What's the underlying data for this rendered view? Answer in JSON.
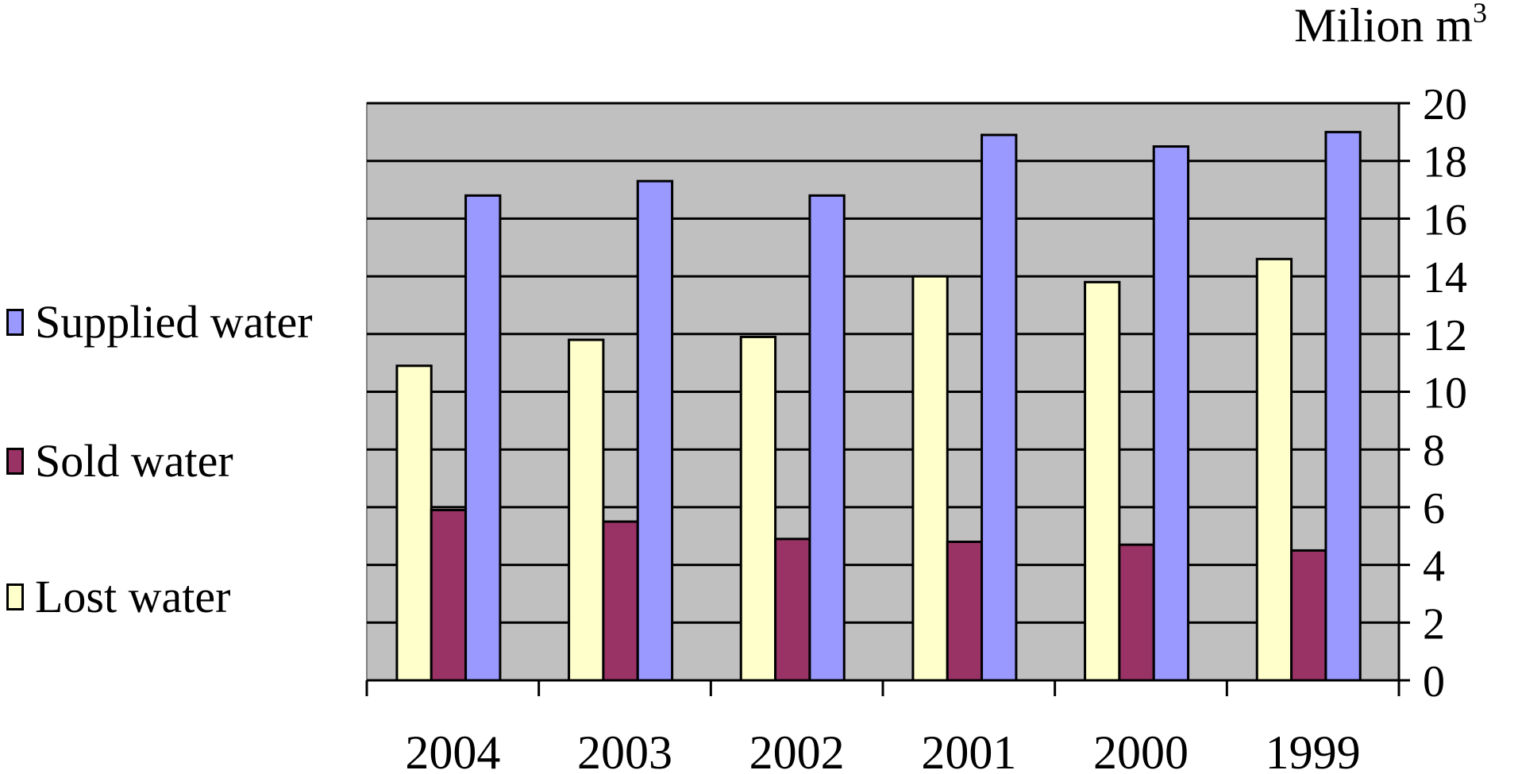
{
  "chart_data": {
    "type": "bar",
    "unit_label": "Milion m",
    "unit_superscript": "3",
    "categories": [
      "2004",
      "2003",
      "2002",
      "2001",
      "2000",
      "1999"
    ],
    "ylim": [
      0,
      20
    ],
    "y_ticks": [
      "0",
      "2",
      "4",
      "6",
      "8",
      "10",
      "12",
      "14",
      "16",
      "18",
      "20"
    ],
    "y_axis_side": "right",
    "grid": true,
    "legend_position": "left",
    "series": [
      {
        "name": "Lost water",
        "color": "#FFFFCC",
        "values": [
          10.9,
          11.8,
          11.9,
          14.0,
          13.8,
          14.6
        ]
      },
      {
        "name": "Sold water",
        "color": "#993366",
        "values": [
          5.9,
          5.5,
          4.9,
          4.8,
          4.7,
          4.5
        ]
      },
      {
        "name": "Supplied water",
        "color": "#9999FF",
        "values": [
          16.8,
          17.3,
          16.8,
          18.9,
          18.5,
          19.0
        ]
      }
    ],
    "plot_background": "#C0C0C0"
  },
  "legend": [
    {
      "label": "Supplied water",
      "color": "#9999FF"
    },
    {
      "label": "Sold water",
      "color": "#993366"
    },
    {
      "label": "Lost water",
      "color": "#FFFFCC"
    }
  ]
}
